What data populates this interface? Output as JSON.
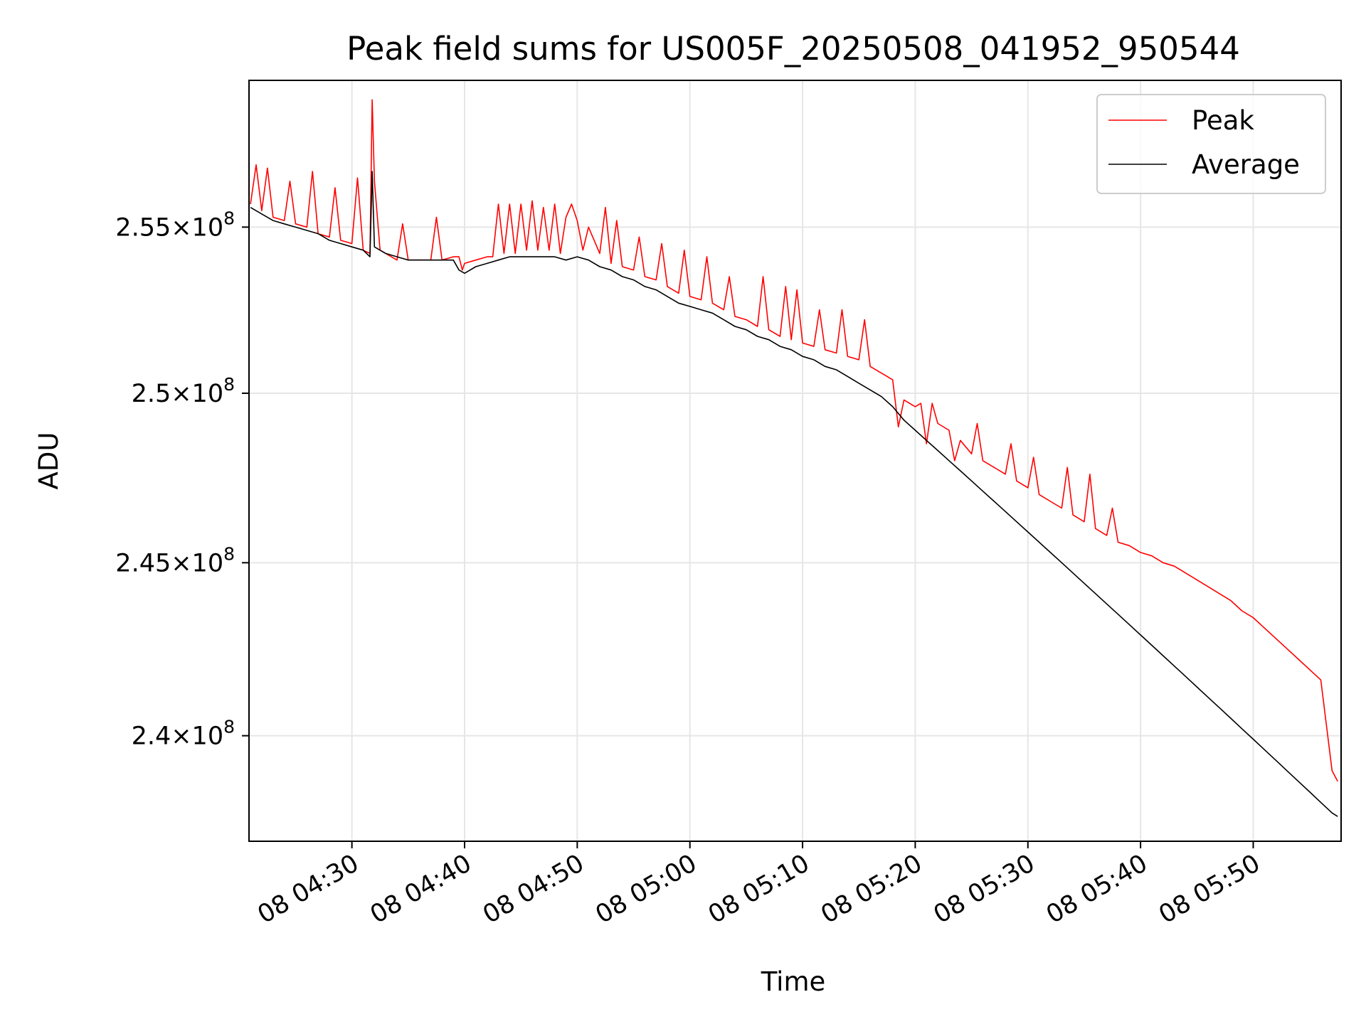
{
  "chart_data": {
    "type": "line",
    "title": "Peak field sums for US005F_20250508_041952_950544",
    "xlabel": "Time",
    "ylabel": "ADU",
    "x_unit": "minutes",
    "xlim": [
      "08 04:20:52",
      "08 05:57:48"
    ],
    "ylim": [
      237000000,
      259500000
    ],
    "y_scale": "log",
    "grid": true,
    "legend_position": "top-right",
    "x_ticks": [
      {
        "label": "08 04:30",
        "value": "08 04:30"
      },
      {
        "label": "08 04:40",
        "value": "08 04:40"
      },
      {
        "label": "08 04:50",
        "value": "08 04:50"
      },
      {
        "label": "08 05:00",
        "value": "08 05:00"
      },
      {
        "label": "08 05:10",
        "value": "08 05:10"
      },
      {
        "label": "08 05:20",
        "value": "08 05:20"
      },
      {
        "label": "08 05:30",
        "value": "08 05:30"
      },
      {
        "label": "08 05:40",
        "value": "08 05:40"
      },
      {
        "label": "08 05:50",
        "value": "08 05:50"
      }
    ],
    "y_ticks": [
      {
        "mantissa": "2.4",
        "exponent": "8",
        "value": 240000000
      },
      {
        "mantissa": "2.45",
        "exponent": "8",
        "value": 245000000
      },
      {
        "mantissa": "2.5",
        "exponent": "8",
        "value": 250000000
      },
      {
        "mantissa": "2.55",
        "exponent": "8",
        "value": 255000000
      }
    ],
    "series": [
      {
        "name": "Peak",
        "color": "#ff0000",
        "points": [
          [
            "08 04:21",
            255700000
          ],
          [
            "08 04:21:30",
            256900000
          ],
          [
            "08 04:22",
            255500000
          ],
          [
            "08 04:22:30",
            256800000
          ],
          [
            "08 04:23",
            255300000
          ],
          [
            "08 04:24",
            255200000
          ],
          [
            "08 04:24:30",
            256400000
          ],
          [
            "08 04:25",
            255100000
          ],
          [
            "08 04:26",
            255000000
          ],
          [
            "08 04:26:30",
            256700000
          ],
          [
            "08 04:27",
            254800000
          ],
          [
            "08 04:28",
            254700000
          ],
          [
            "08 04:28:30",
            256200000
          ],
          [
            "08 04:29",
            254600000
          ],
          [
            "08 04:30",
            254500000
          ],
          [
            "08 04:30:30",
            256500000
          ],
          [
            "08 04:31",
            254300000
          ],
          [
            "08 04:31:36",
            254200000
          ],
          [
            "08 04:31:48",
            258900000
          ],
          [
            "08 04:32",
            256400000
          ],
          [
            "08 04:32:30",
            254300000
          ],
          [
            "08 04:33",
            254200000
          ],
          [
            "08 04:34",
            254000000
          ],
          [
            "08 04:34:30",
            255100000
          ],
          [
            "08 04:35",
            254000000
          ],
          [
            "08 04:36",
            254000000
          ],
          [
            "08 04:37",
            254000000
          ],
          [
            "08 04:37:30",
            255300000
          ],
          [
            "08 04:38",
            254000000
          ],
          [
            "08 04:39",
            254100000
          ],
          [
            "08 04:39:30",
            254100000
          ],
          [
            "08 04:39:48",
            253700000
          ],
          [
            "08 04:40",
            253900000
          ],
          [
            "08 04:41",
            254000000
          ],
          [
            "08 04:42",
            254100000
          ],
          [
            "08 04:42:30",
            254100000
          ],
          [
            "08 04:43",
            255700000
          ],
          [
            "08 04:43:30",
            254200000
          ],
          [
            "08 04:44",
            255700000
          ],
          [
            "08 04:44:30",
            254200000
          ],
          [
            "08 04:45",
            255700000
          ],
          [
            "08 04:45:30",
            254300000
          ],
          [
            "08 04:46",
            255800000
          ],
          [
            "08 04:46:30",
            254300000
          ],
          [
            "08 04:47",
            255600000
          ],
          [
            "08 04:47:30",
            254300000
          ],
          [
            "08 04:48",
            255700000
          ],
          [
            "08 04:48:30",
            254200000
          ],
          [
            "08 04:49",
            255300000
          ],
          [
            "08 04:49:30",
            255700000
          ],
          [
            "08 04:50",
            255200000
          ],
          [
            "08 04:50:30",
            254300000
          ],
          [
            "08 04:51",
            255000000
          ],
          [
            "08 04:52",
            254200000
          ],
          [
            "08 04:52:30",
            255600000
          ],
          [
            "08 04:53",
            253900000
          ],
          [
            "08 04:53:30",
            255200000
          ],
          [
            "08 04:54",
            253800000
          ],
          [
            "08 04:55",
            253700000
          ],
          [
            "08 04:55:30",
            254700000
          ],
          [
            "08 04:56",
            253500000
          ],
          [
            "08 04:57",
            253400000
          ],
          [
            "08 04:57:30",
            254500000
          ],
          [
            "08 04:58",
            253200000
          ],
          [
            "08 04:59",
            253000000
          ],
          [
            "08 04:59:30",
            254300000
          ],
          [
            "08 05:00",
            252900000
          ],
          [
            "08 05:01",
            252800000
          ],
          [
            "08 05:01:30",
            254100000
          ],
          [
            "08 05:02",
            252700000
          ],
          [
            "08 05:03",
            252500000
          ],
          [
            "08 05:03:30",
            253500000
          ],
          [
            "08 05:04",
            252300000
          ],
          [
            "08 05:05",
            252200000
          ],
          [
            "08 05:06",
            252000000
          ],
          [
            "08 05:06:30",
            253500000
          ],
          [
            "08 05:07",
            251900000
          ],
          [
            "08 05:08",
            251700000
          ],
          [
            "08 05:08:30",
            253200000
          ],
          [
            "08 05:09",
            251600000
          ],
          [
            "08 05:09:30",
            253100000
          ],
          [
            "08 05:10",
            251500000
          ],
          [
            "08 05:11",
            251400000
          ],
          [
            "08 05:11:30",
            252500000
          ],
          [
            "08 05:12",
            251300000
          ],
          [
            "08 05:13",
            251200000
          ],
          [
            "08 05:13:30",
            252500000
          ],
          [
            "08 05:14",
            251100000
          ],
          [
            "08 05:15",
            251000000
          ],
          [
            "08 05:15:30",
            252200000
          ],
          [
            "08 05:16",
            250800000
          ],
          [
            "08 05:17",
            250600000
          ],
          [
            "08 05:18",
            250400000
          ],
          [
            "08 05:18:30",
            249000000
          ],
          [
            "08 05:19",
            249800000
          ],
          [
            "08 05:20",
            249600000
          ],
          [
            "08 05:20:30",
            249700000
          ],
          [
            "08 05:21",
            248500000
          ],
          [
            "08 05:21:30",
            249700000
          ],
          [
            "08 05:22",
            249100000
          ],
          [
            "08 05:23",
            248900000
          ],
          [
            "08 05:23:30",
            248000000
          ],
          [
            "08 05:24",
            248600000
          ],
          [
            "08 05:25",
            248200000
          ],
          [
            "08 05:25:30",
            249100000
          ],
          [
            "08 05:26",
            248000000
          ],
          [
            "08 05:27",
            247800000
          ],
          [
            "08 05:28",
            247600000
          ],
          [
            "08 05:28:30",
            248500000
          ],
          [
            "08 05:29",
            247400000
          ],
          [
            "08 05:30",
            247200000
          ],
          [
            "08 05:30:30",
            248100000
          ],
          [
            "08 05:31",
            247000000
          ],
          [
            "08 05:32",
            246800000
          ],
          [
            "08 05:33",
            246600000
          ],
          [
            "08 05:33:30",
            247800000
          ],
          [
            "08 05:34",
            246400000
          ],
          [
            "08 05:35",
            246200000
          ],
          [
            "08 05:35:30",
            247600000
          ],
          [
            "08 05:36",
            246000000
          ],
          [
            "08 05:37",
            245800000
          ],
          [
            "08 05:37:30",
            246600000
          ],
          [
            "08 05:38",
            245600000
          ],
          [
            "08 05:39",
            245500000
          ],
          [
            "08 05:40",
            245300000
          ],
          [
            "08 05:41",
            245200000
          ],
          [
            "08 05:42",
            245000000
          ],
          [
            "08 05:43",
            244900000
          ],
          [
            "08 05:44",
            244700000
          ],
          [
            "08 05:45",
            244500000
          ],
          [
            "08 05:46",
            244300000
          ],
          [
            "08 05:47",
            244100000
          ],
          [
            "08 05:48",
            243900000
          ],
          [
            "08 05:49",
            243600000
          ],
          [
            "08 05:50",
            243400000
          ],
          [
            "08 05:51",
            243100000
          ],
          [
            "08 05:52",
            242800000
          ],
          [
            "08 05:53",
            242500000
          ],
          [
            "08 05:54",
            242200000
          ],
          [
            "08 05:55",
            241900000
          ],
          [
            "08 05:56",
            241600000
          ],
          [
            "08 05:57",
            239000000
          ],
          [
            "08 05:57:30",
            238700000
          ]
        ]
      },
      {
        "name": "Average",
        "color": "#000000",
        "points": [
          [
            "08 04:21",
            255600000
          ],
          [
            "08 04:22",
            255400000
          ],
          [
            "08 04:23",
            255200000
          ],
          [
            "08 04:24",
            255100000
          ],
          [
            "08 04:25",
            255000000
          ],
          [
            "08 04:26",
            254900000
          ],
          [
            "08 04:27",
            254800000
          ],
          [
            "08 04:28",
            254600000
          ],
          [
            "08 04:29",
            254500000
          ],
          [
            "08 04:30",
            254400000
          ],
          [
            "08 04:31",
            254300000
          ],
          [
            "08 04:31:36",
            254100000
          ],
          [
            "08 04:31:48",
            256700000
          ],
          [
            "08 04:32",
            254400000
          ],
          [
            "08 04:33",
            254200000
          ],
          [
            "08 04:34",
            254100000
          ],
          [
            "08 04:35",
            254000000
          ],
          [
            "08 04:36",
            254000000
          ],
          [
            "08 04:37",
            254000000
          ],
          [
            "08 04:38",
            254000000
          ],
          [
            "08 04:39",
            254000000
          ],
          [
            "08 04:39:30",
            253700000
          ],
          [
            "08 04:40",
            253600000
          ],
          [
            "08 04:41",
            253800000
          ],
          [
            "08 04:42",
            253900000
          ],
          [
            "08 04:43",
            254000000
          ],
          [
            "08 04:44",
            254100000
          ],
          [
            "08 04:45",
            254100000
          ],
          [
            "08 04:46",
            254100000
          ],
          [
            "08 04:47",
            254100000
          ],
          [
            "08 04:48",
            254100000
          ],
          [
            "08 04:49",
            254000000
          ],
          [
            "08 04:50",
            254100000
          ],
          [
            "08 04:51",
            254000000
          ],
          [
            "08 04:52",
            253800000
          ],
          [
            "08 04:53",
            253700000
          ],
          [
            "08 04:54",
            253500000
          ],
          [
            "08 04:55",
            253400000
          ],
          [
            "08 04:56",
            253200000
          ],
          [
            "08 04:57",
            253100000
          ],
          [
            "08 04:58",
            252900000
          ],
          [
            "08 04:59",
            252700000
          ],
          [
            "08 05:00",
            252600000
          ],
          [
            "08 05:01",
            252500000
          ],
          [
            "08 05:02",
            252400000
          ],
          [
            "08 05:03",
            252200000
          ],
          [
            "08 05:04",
            252000000
          ],
          [
            "08 05:05",
            251900000
          ],
          [
            "08 05:06",
            251700000
          ],
          [
            "08 05:07",
            251600000
          ],
          [
            "08 05:08",
            251400000
          ],
          [
            "08 05:09",
            251300000
          ],
          [
            "08 05:10",
            251100000
          ],
          [
            "08 05:11",
            251000000
          ],
          [
            "08 05:12",
            250800000
          ],
          [
            "08 05:13",
            250700000
          ],
          [
            "08 05:14",
            250500000
          ],
          [
            "08 05:15",
            250300000
          ],
          [
            "08 05:16",
            250100000
          ],
          [
            "08 05:17",
            249900000
          ],
          [
            "08 05:18",
            249600000
          ],
          [
            "08 05:19",
            249200000
          ],
          [
            "08 05:20",
            248900000
          ],
          [
            "08 05:21",
            248600000
          ],
          [
            "08 05:22",
            248300000
          ],
          [
            "08 05:23",
            248000000
          ],
          [
            "08 05:24",
            247700000
          ],
          [
            "08 05:25",
            247400000
          ],
          [
            "08 05:26",
            247100000
          ],
          [
            "08 05:27",
            246800000
          ],
          [
            "08 05:28",
            246500000
          ],
          [
            "08 05:29",
            246200000
          ],
          [
            "08 05:30",
            245900000
          ],
          [
            "08 05:31",
            245600000
          ],
          [
            "08 05:32",
            245300000
          ],
          [
            "08 05:33",
            245000000
          ],
          [
            "08 05:34",
            244700000
          ],
          [
            "08 05:35",
            244400000
          ],
          [
            "08 05:36",
            244100000
          ],
          [
            "08 05:37",
            243800000
          ],
          [
            "08 05:38",
            243500000
          ],
          [
            "08 05:39",
            243200000
          ],
          [
            "08 05:40",
            242900000
          ],
          [
            "08 05:41",
            242600000
          ],
          [
            "08 05:42",
            242300000
          ],
          [
            "08 05:43",
            242000000
          ],
          [
            "08 05:44",
            241700000
          ],
          [
            "08 05:45",
            241400000
          ],
          [
            "08 05:46",
            241100000
          ],
          [
            "08 05:47",
            240800000
          ],
          [
            "08 05:48",
            240500000
          ],
          [
            "08 05:49",
            240200000
          ],
          [
            "08 05:50",
            239900000
          ],
          [
            "08 05:51",
            239600000
          ],
          [
            "08 05:52",
            239300000
          ],
          [
            "08 05:53",
            239000000
          ],
          [
            "08 05:54",
            238700000
          ],
          [
            "08 05:55",
            238400000
          ],
          [
            "08 05:56",
            238100000
          ],
          [
            "08 05:57",
            237800000
          ],
          [
            "08 05:57:30",
            237700000
          ]
        ]
      }
    ]
  }
}
